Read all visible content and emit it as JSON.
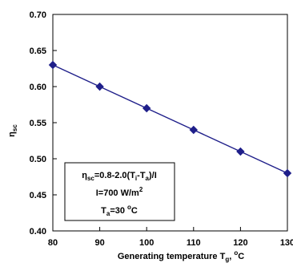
{
  "chart_data": {
    "type": "line",
    "x": [
      80,
      90,
      100,
      110,
      120,
      130
    ],
    "series": [
      {
        "values": [
          0.63,
          0.6,
          0.57,
          0.54,
          0.51,
          0.48
        ],
        "color": "#1f1f8a"
      }
    ],
    "xlim": [
      80,
      130
    ],
    "ylim": [
      0.4,
      0.7
    ],
    "x_ticks": [
      "80",
      "90",
      "100",
      "110",
      "120",
      "130"
    ],
    "y_ticks": [
      "0.40",
      "0.45",
      "0.50",
      "0.55",
      "0.60",
      "0.65",
      "0.70"
    ],
    "xlabel": {
      "main": "Generating temperature T",
      "sub": "g",
      "tail": ", ",
      "sup": "o",
      "unit": "C"
    },
    "ylabel": {
      "main": "η",
      "sub": "sc"
    },
    "grid": false,
    "marker": "diamond",
    "annotation": {
      "line1": {
        "a": "η",
        "a_sub": "sc",
        "b": "=0.8-2.0(T",
        "b_sub": "i",
        "c": "-T",
        "c_sub": "a",
        "d": ")/I"
      },
      "line2": {
        "a": "I=700 W/m",
        "sup": "2"
      },
      "line3": {
        "a": "T",
        "a_sub": "a",
        "b": "=30 ",
        "sup": "o",
        "c": "C"
      }
    }
  }
}
